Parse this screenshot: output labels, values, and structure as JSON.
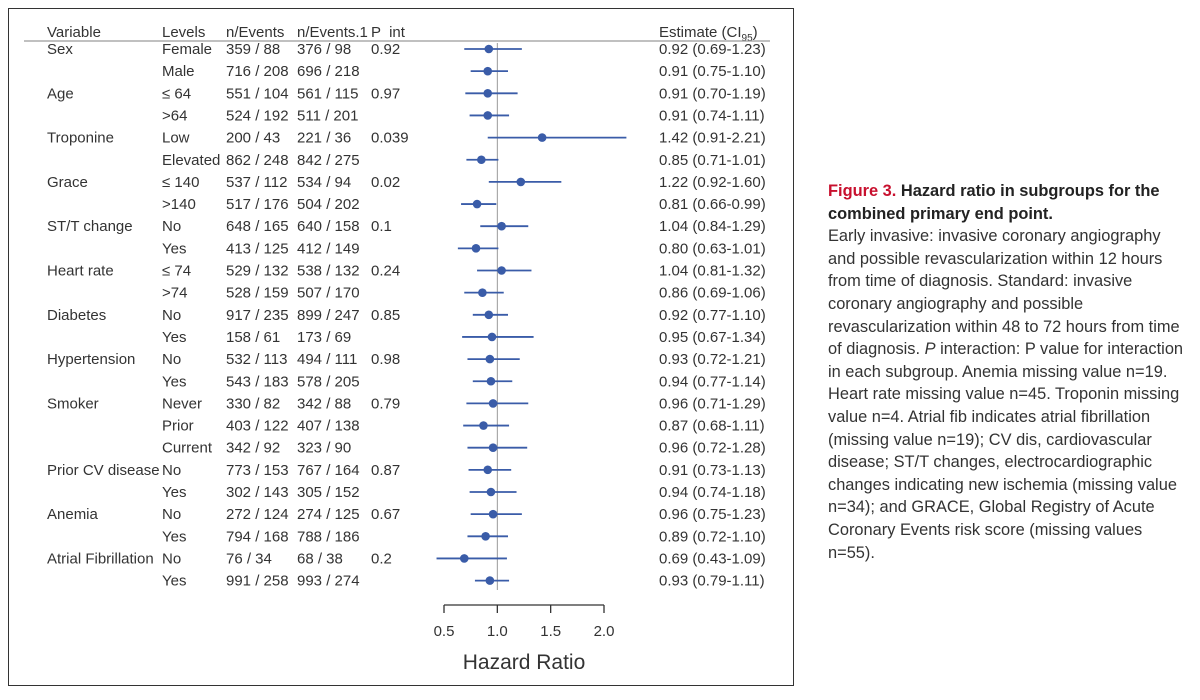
{
  "columns": {
    "variable": "Variable",
    "levels": "Levels",
    "n_events": "n/Events",
    "n_events1": "n/Events.1",
    "p_int": "P  int",
    "estimate_prefix": "Estimate (CI",
    "estimate_sub": "95",
    "estimate_suffix": ")"
  },
  "chart_data": {
    "type": "forest",
    "xlabel": "Hazard Ratio",
    "xlim": [
      0.5,
      2.0
    ],
    "ticks": [
      0.5,
      1.0,
      1.5,
      2.0
    ],
    "tick_labels": [
      "0.5",
      "1.0",
      "1.5",
      "2.0"
    ],
    "reference_line": 1.0,
    "point_color": "#3a5ca8",
    "rows": [
      {
        "variable": "Sex",
        "level": "Female",
        "n_events": "359 / 88",
        "n_events1": "376 / 98",
        "p_int": "0.92",
        "hr": 0.92,
        "lo": 0.69,
        "hi": 1.23,
        "estimate": "0.92 (0.69-1.23)"
      },
      {
        "variable": "",
        "level": "Male",
        "n_events": "716 / 208",
        "n_events1": "696 / 218",
        "p_int": "",
        "hr": 0.91,
        "lo": 0.75,
        "hi": 1.1,
        "estimate": "0.91 (0.75-1.10)"
      },
      {
        "variable": "Age",
        "level": "≤ 64",
        "n_events": "551 / 104",
        "n_events1": "561 / 115",
        "p_int": "0.97",
        "hr": 0.91,
        "lo": 0.7,
        "hi": 1.19,
        "estimate": "0.91 (0.70-1.19)"
      },
      {
        "variable": "",
        "level": ">64",
        "n_events": "524 / 192",
        "n_events1": "511 / 201",
        "p_int": "",
        "hr": 0.91,
        "lo": 0.74,
        "hi": 1.11,
        "estimate": "0.91 (0.74-1.11)"
      },
      {
        "variable": "Troponine",
        "level": "Low",
        "n_events": "200 / 43",
        "n_events1": "221 / 36",
        "p_int": "0.039",
        "hr": 1.42,
        "lo": 0.91,
        "hi": 2.21,
        "estimate": "1.42 (0.91-2.21)"
      },
      {
        "variable": "",
        "level": "Elevated",
        "n_events": "862 / 248",
        "n_events1": "842 / 275",
        "p_int": "",
        "hr": 0.85,
        "lo": 0.71,
        "hi": 1.01,
        "estimate": "0.85 (0.71-1.01)"
      },
      {
        "variable": "Grace",
        "level": "≤ 140",
        "n_events": "537 / 112",
        "n_events1": "534 / 94",
        "p_int": "0.02",
        "hr": 1.22,
        "lo": 0.92,
        "hi": 1.6,
        "estimate": "1.22 (0.92-1.60)"
      },
      {
        "variable": "",
        "level": ">140",
        "n_events": "517 / 176",
        "n_events1": "504 / 202",
        "p_int": "",
        "hr": 0.81,
        "lo": 0.66,
        "hi": 0.99,
        "estimate": "0.81 (0.66-0.99)"
      },
      {
        "variable": "ST/T change",
        "level": "No",
        "n_events": "648 / 165",
        "n_events1": "640 / 158",
        "p_int": "0.1",
        "hr": 1.04,
        "lo": 0.84,
        "hi": 1.29,
        "estimate": "1.04 (0.84-1.29)"
      },
      {
        "variable": "",
        "level": "Yes",
        "n_events": "413 / 125",
        "n_events1": "412 / 149",
        "p_int": "",
        "hr": 0.8,
        "lo": 0.63,
        "hi": 1.01,
        "estimate": "0.80 (0.63-1.01)"
      },
      {
        "variable": "Heart rate",
        "level": "≤ 74",
        "n_events": "529 / 132",
        "n_events1": "538 / 132",
        "p_int": "0.24",
        "hr": 1.04,
        "lo": 0.81,
        "hi": 1.32,
        "estimate": "1.04 (0.81-1.32)"
      },
      {
        "variable": "",
        "level": ">74",
        "n_events": "528 / 159",
        "n_events1": "507 / 170",
        "p_int": "",
        "hr": 0.86,
        "lo": 0.69,
        "hi": 1.06,
        "estimate": "0.86 (0.69-1.06)"
      },
      {
        "variable": "Diabetes",
        "level": "No",
        "n_events": "917 / 235",
        "n_events1": "899 / 247",
        "p_int": "0.85",
        "hr": 0.92,
        "lo": 0.77,
        "hi": 1.1,
        "estimate": "0.92 (0.77-1.10)"
      },
      {
        "variable": "",
        "level": "Yes",
        "n_events": "158 / 61",
        "n_events1": "173 / 69",
        "p_int": "",
        "hr": 0.95,
        "lo": 0.67,
        "hi": 1.34,
        "estimate": "0.95 (0.67-1.34)"
      },
      {
        "variable": "Hypertension",
        "level": "No",
        "n_events": "532 / 113",
        "n_events1": "494 / 111",
        "p_int": "0.98",
        "hr": 0.93,
        "lo": 0.72,
        "hi": 1.21,
        "estimate": "0.93 (0.72-1.21)"
      },
      {
        "variable": "",
        "level": "Yes",
        "n_events": "543 / 183",
        "n_events1": "578 / 205",
        "p_int": "",
        "hr": 0.94,
        "lo": 0.77,
        "hi": 1.14,
        "estimate": "0.94 (0.77-1.14)"
      },
      {
        "variable": "Smoker",
        "level": "Never",
        "n_events": "330 / 82",
        "n_events1": "342 / 88",
        "p_int": "0.79",
        "hr": 0.96,
        "lo": 0.71,
        "hi": 1.29,
        "estimate": "0.96 (0.71-1.29)"
      },
      {
        "variable": "",
        "level": "Prior",
        "n_events": "403 / 122",
        "n_events1": "407 / 138",
        "p_int": "",
        "hr": 0.87,
        "lo": 0.68,
        "hi": 1.11,
        "estimate": "0.87 (0.68-1.11)"
      },
      {
        "variable": "",
        "level": "Current",
        "n_events": "342 / 92",
        "n_events1": "323 / 90",
        "p_int": "",
        "hr": 0.96,
        "lo": 0.72,
        "hi": 1.28,
        "estimate": "0.96 (0.72-1.28)"
      },
      {
        "variable": "Prior CV disease",
        "level": "No",
        "n_events": "773 / 153",
        "n_events1": "767 / 164",
        "p_int": "0.87",
        "hr": 0.91,
        "lo": 0.73,
        "hi": 1.13,
        "estimate": "0.91 (0.73-1.13)"
      },
      {
        "variable": "",
        "level": "Yes",
        "n_events": "302 / 143",
        "n_events1": "305 / 152",
        "p_int": "",
        "hr": 0.94,
        "lo": 0.74,
        "hi": 1.18,
        "estimate": "0.94 (0.74-1.18)"
      },
      {
        "variable": "Anemia",
        "level": "No",
        "n_events": "272 / 124",
        "n_events1": "274 / 125",
        "p_int": "0.67",
        "hr": 0.96,
        "lo": 0.75,
        "hi": 1.23,
        "estimate": "0.96 (0.75-1.23)"
      },
      {
        "variable": "",
        "level": "Yes",
        "n_events": "794 / 168",
        "n_events1": "788 / 186",
        "p_int": "",
        "hr": 0.89,
        "lo": 0.72,
        "hi": 1.1,
        "estimate": "0.89 (0.72-1.10)"
      },
      {
        "variable": "Atrial Fibrillation",
        "level": "No",
        "n_events": "76 / 34",
        "n_events1": "68 / 38",
        "p_int": "0.2",
        "hr": 0.69,
        "lo": 0.43,
        "hi": 1.09,
        "estimate": "0.69 (0.43-1.09)"
      },
      {
        "variable": "",
        "level": "Yes",
        "n_events": "991 / 258",
        "n_events1": "993 / 274",
        "p_int": "",
        "hr": 0.93,
        "lo": 0.79,
        "hi": 1.11,
        "estimate": "0.93 (0.79-1.11)"
      }
    ]
  },
  "caption": {
    "label": "Figure 3.",
    "title": " Hazard ratio in subgroups for the combined primary end point.",
    "body_1": "Early invasive: invasive coronary angiography and possible revascularization within 12 hours from time of diagnosis. Standard: invasive coronary angiography and possible revascularization within 48 to 72 hours from time of diagnosis. ",
    "p_italic": "P",
    "body_2": " interaction: P value for interaction in each subgroup. Anemia missing value n=19. Heart rate missing value n=45. Troponin missing value n=4. Atrial fib indicates atrial fibrillation (missing value n=19); CV dis, cardiovascular disease; ST/T changes, electrocardiographic changes indicating new ischemia (missing value n=34); and GRACE, Global Registry of Acute Coronary Events risk score (missing values n=55)."
  }
}
